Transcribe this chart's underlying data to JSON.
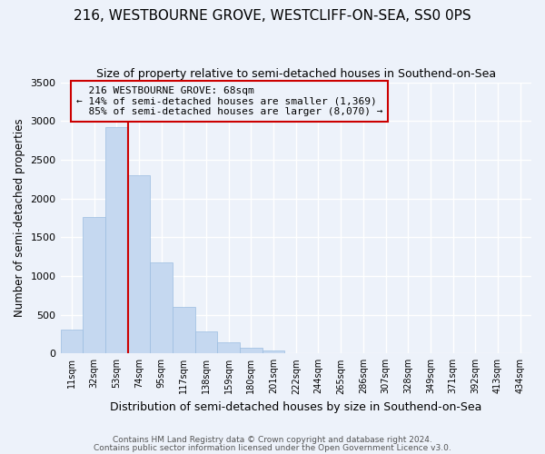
{
  "title": "216, WESTBOURNE GROVE, WESTCLIFF-ON-SEA, SS0 0PS",
  "subtitle": "Size of property relative to semi-detached houses in Southend-on-Sea",
  "xlabel": "Distribution of semi-detached houses by size in Southend-on-Sea",
  "ylabel": "Number of semi-detached properties",
  "footer1": "Contains HM Land Registry data © Crown copyright and database right 2024.",
  "footer2": "Contains public sector information licensed under the Open Government Licence v3.0.",
  "bin_labels": [
    "11sqm",
    "32sqm",
    "53sqm",
    "74sqm",
    "95sqm",
    "117sqm",
    "138sqm",
    "159sqm",
    "180sqm",
    "201sqm",
    "222sqm",
    "244sqm",
    "265sqm",
    "286sqm",
    "307sqm",
    "328sqm",
    "349sqm",
    "371sqm",
    "392sqm",
    "413sqm",
    "434sqm"
  ],
  "bar_values": [
    305,
    1760,
    2920,
    2300,
    1170,
    600,
    290,
    140,
    70,
    40,
    0,
    0,
    0,
    0,
    0,
    0,
    0,
    0,
    0,
    0,
    0
  ],
  "property_label": "216 WESTBOURNE GROVE: 68sqm",
  "pct_smaller": 14,
  "pct_larger": 85,
  "n_smaller": 1369,
  "n_larger": 8070,
  "vline_bin_index": 2.5,
  "bar_color": "#c5d8f0",
  "bar_edge_color": "#9bbde0",
  "vline_color": "#cc0000",
  "box_edge_color": "#cc0000",
  "ylim": [
    0,
    3500
  ],
  "yticks": [
    0,
    500,
    1000,
    1500,
    2000,
    2500,
    3000,
    3500
  ],
  "bg_color": "#edf2fa",
  "grid_color": "white",
  "title_fontsize": 11,
  "subtitle_fontsize": 9
}
